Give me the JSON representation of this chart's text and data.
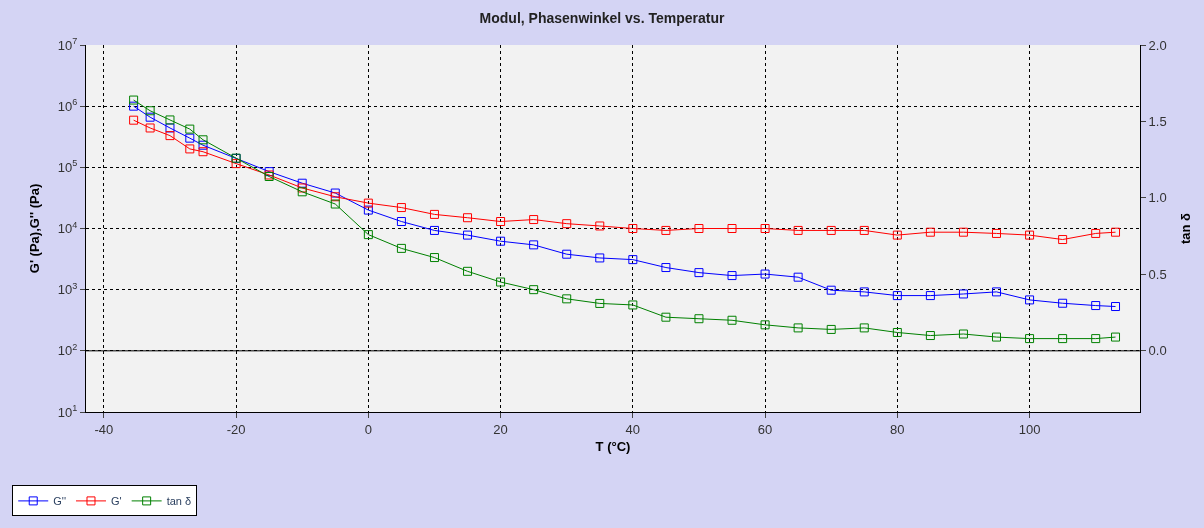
{
  "chart_data": {
    "type": "line",
    "title": "Modul, Phasenwinkel vs. Temperatur",
    "xlabel": "T (°C)",
    "ylabel": "G' (Pa),G'' (Pa)",
    "y2label": "tan δ",
    "x": [
      -35.5,
      -33,
      -30,
      -27,
      -25,
      -20,
      -15,
      -10,
      -5,
      0,
      5,
      10,
      15,
      20,
      25,
      30,
      35,
      40,
      45,
      50,
      55,
      60,
      65,
      70,
      75,
      80,
      85,
      90,
      95,
      100,
      105,
      110,
      113
    ],
    "series": [
      {
        "name": "G''",
        "color": "#0000ff",
        "values": [
          1000000,
          660000,
          440000,
          300000,
          230000,
          140000,
          85000,
          55000,
          38000,
          20000,
          13000,
          9300,
          7800,
          6200,
          5400,
          3800,
          3300,
          3100,
          2300,
          1900,
          1700,
          1800,
          1600,
          980,
          920,
          800,
          800,
          850,
          920,
          680,
          600,
          550,
          530
        ]
      },
      {
        "name": "G'",
        "color": "#ff0000",
        "values": [
          590000,
          440000,
          330000,
          200000,
          180000,
          115000,
          75000,
          46000,
          33000,
          26000,
          22000,
          17000,
          15000,
          13000,
          14000,
          12000,
          11000,
          10000,
          9300,
          10000,
          10000,
          10000,
          9300,
          9300,
          9300,
          7800,
          8700,
          8700,
          8300,
          7800,
          6600,
          8300,
          8700
        ]
      },
      {
        "name": "tan δ",
        "color": "#008000",
        "axis": "y2",
        "values": [
          1.64,
          1.57,
          1.51,
          1.45,
          1.38,
          1.26,
          1.14,
          1.04,
          0.96,
          0.76,
          0.67,
          0.61,
          0.52,
          0.45,
          0.4,
          0.34,
          0.31,
          0.3,
          0.22,
          0.21,
          0.2,
          0.17,
          0.15,
          0.14,
          0.15,
          0.12,
          0.1,
          0.11,
          0.09,
          0.08,
          0.08,
          0.08,
          0.09
        ]
      }
    ],
    "log": "y",
    "xlim": [
      -42.7,
      116.7
    ],
    "xticks": [
      -40,
      -20,
      0,
      20,
      40,
      60,
      80,
      100
    ],
    "ylim": [
      10,
      10000000
    ],
    "yticks": [
      {
        "value": 10,
        "label": "10$^{1}$"
      },
      {
        "value": 100,
        "label": "10$^{2}$"
      },
      {
        "value": 1000,
        "label": "10$^{3}$"
      },
      {
        "value": 10000,
        "label": "10$^{4}$"
      },
      {
        "value": 100000,
        "label": "10$^{5}$"
      },
      {
        "value": 1000000,
        "label": "10$^{6}$"
      },
      {
        "value": 10000000,
        "label": "10$^{7}$"
      }
    ],
    "y2lim": [
      -0.4,
      2.0
    ],
    "y2ticks": [
      {
        "value": 0,
        "label": "0.0"
      },
      {
        "value": 0.5,
        "label": "0.5"
      },
      {
        "value": 1,
        "label": "1.0"
      },
      {
        "value": 1.5,
        "label": "1.5"
      },
      {
        "value": 2,
        "label": "2.0"
      }
    ],
    "ref_lines": [
      {
        "axis": "y2",
        "value": 0,
        "color": "#000000"
      }
    ],
    "grid": true,
    "legend": "bottom left",
    "marker": "square",
    "line_style": "solid"
  }
}
